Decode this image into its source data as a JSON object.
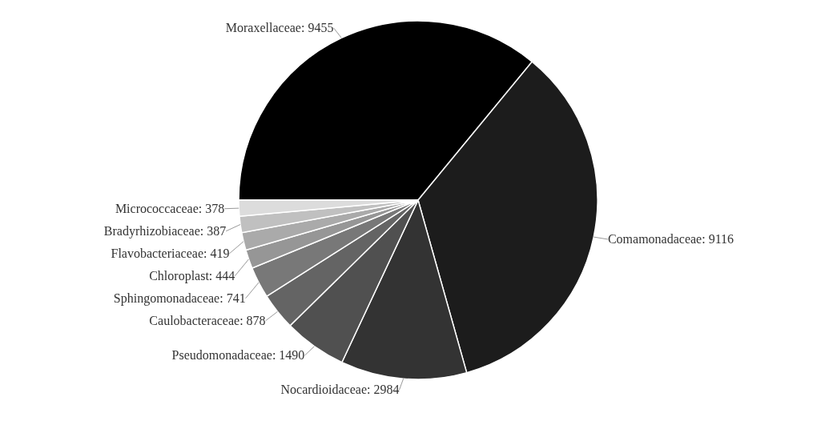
{
  "chart_data": {
    "type": "pie",
    "categories": [
      "Moraxellaceae: 9455",
      "Comamonadaceae: 9116",
      "Nocardioidaceae: 2984",
      "Pseudomonadaceae: 1490",
      "Caulobacteraceae: 878",
      "Sphingomonadaceae: 741",
      "Chloroplast: 444",
      "Flavobacteriaceae: 419",
      "Bradyrhizobiaceae: 387",
      "Micrococcaceae: 378"
    ],
    "values": [
      9455,
      9116,
      2984,
      1490,
      878,
      741,
      444,
      419,
      387,
      378
    ],
    "colors": [
      "#000000",
      "#1c1c1c",
      "#333333",
      "#505050",
      "#646464",
      "#787878",
      "#969696",
      "#aaaaaa",
      "#c0c0c0",
      "#dcdcdc"
    ]
  }
}
